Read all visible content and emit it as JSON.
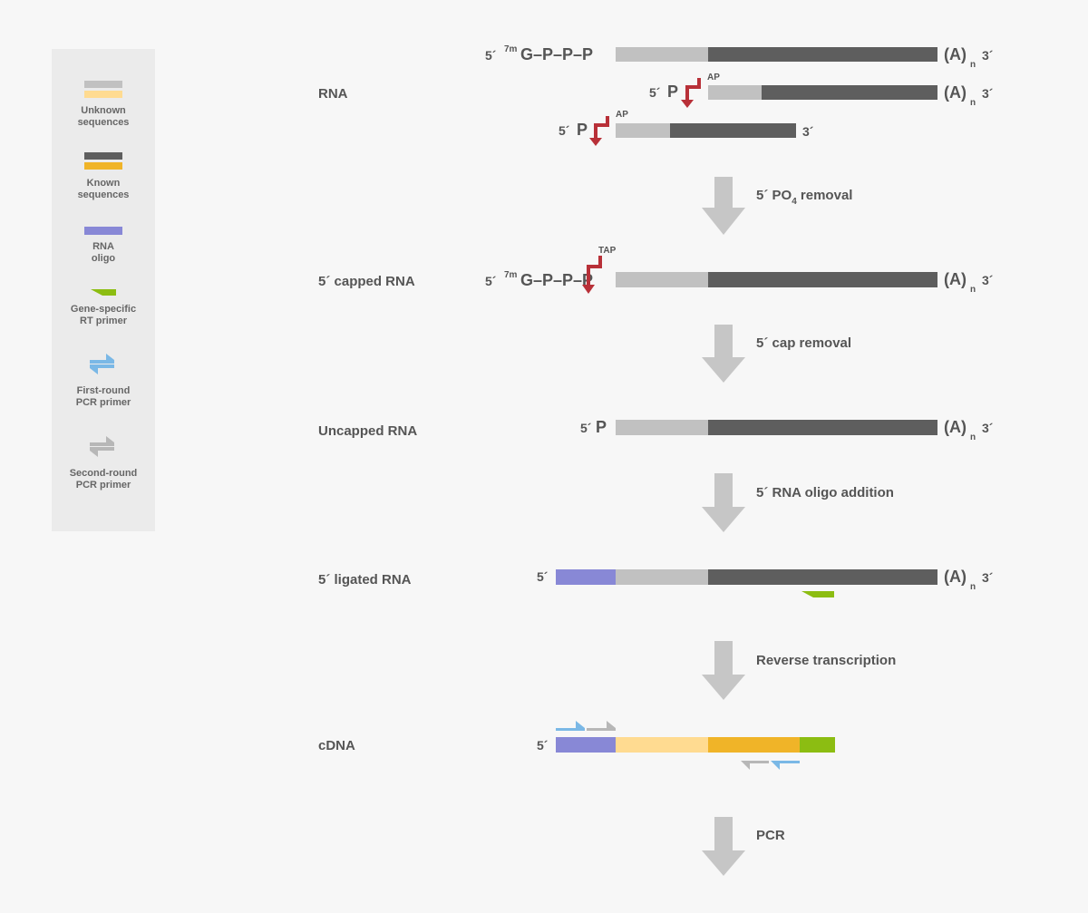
{
  "colors": {
    "unknown_rna": "#c1c1c1",
    "unknown_cdna": "#ffdb91",
    "known_rna": "#5e5e5e",
    "known_cdna": "#f0b428",
    "rna_oligo": "#8888d6",
    "rt_primer": "#8cbd12",
    "first_round_primer": "#7ab8e6",
    "second_round_primer": "#b7b7b7",
    "enzyme": "#b83038",
    "step_arrow": "#c6c6c6"
  },
  "legend": {
    "unknown": [
      "Unknown",
      "sequences"
    ],
    "known": [
      "Known",
      "sequences"
    ],
    "oligo": [
      "RNA",
      "oligo"
    ],
    "rt_primer": [
      "Gene-specific",
      "RT primer"
    ],
    "first_primer": [
      "First-round",
      "PCR primer"
    ],
    "second_primer": [
      "Second-round",
      "PCR primer"
    ]
  },
  "rows": {
    "rna": "RNA",
    "capped": "5´ capped RNA",
    "uncapped": "Uncapped RNA",
    "ligated": "5´ ligated RNA",
    "cdna": "cDNA"
  },
  "steps": {
    "po4_pre": "5´ PO",
    "po4_sub": "4",
    "po4_post": " removal",
    "cap": "5´ cap removal",
    "oligo": "5´ RNA oligo addition",
    "rt": "Reverse transcription",
    "pcr": "PCR"
  },
  "labels": {
    "five": "5´",
    "three": "3´",
    "sevenm": "7m",
    "cap_chain": "G–P–P–P",
    "p": "P",
    "polya": "(A)",
    "polya_sub": "n",
    "ap": "AP",
    "tap": "TAP"
  }
}
